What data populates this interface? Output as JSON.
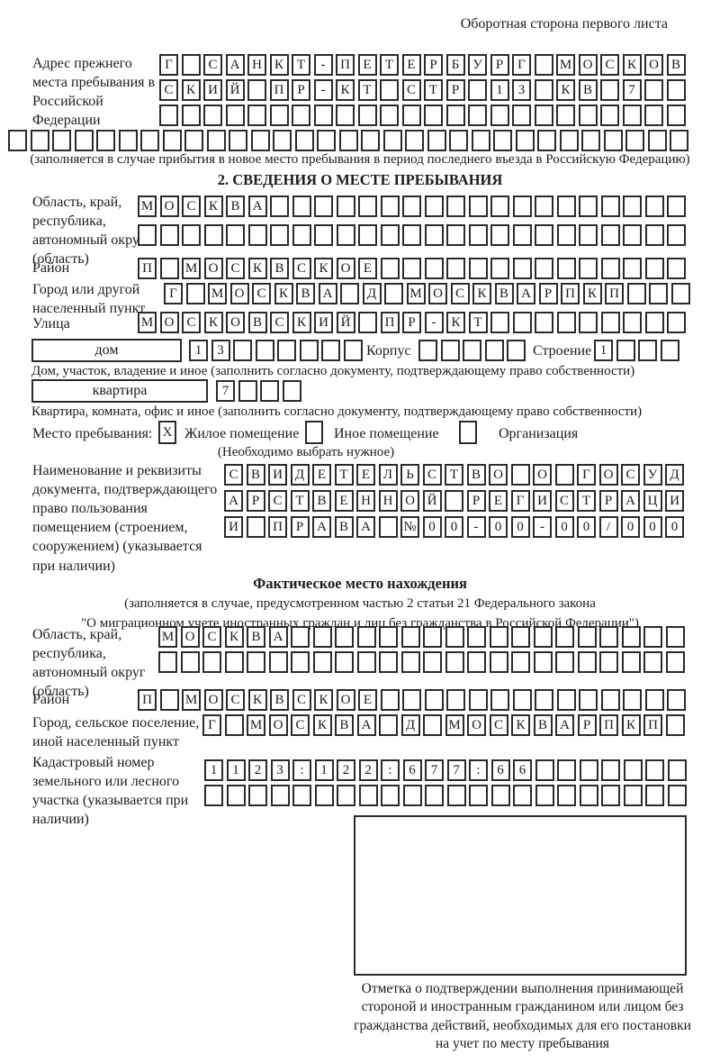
{
  "colors": {
    "ink": "#1c1c1c",
    "box_border": "#2b2b2b"
  },
  "page": {
    "header_note": "Оборотная сторона первого листа"
  },
  "prev_address": {
    "label": "Адрес прежнего места пребывания в Российской Федерации",
    "rows": [
      {
        "text": "Г САНКТ-ПЕТЕРБУРГ МОСКОВ",
        "cells": 24
      },
      {
        "text": "СКИЙ ПР-КТ СТР 13 КВ 7",
        "cells": 24
      },
      {
        "text": "",
        "cells": 24
      },
      {
        "text": "",
        "cells": 31
      }
    ],
    "note": "(заполняется в случае прибытия в новое место пребывания в период последнего въезда в Российскую Федерацию)"
  },
  "section2": {
    "title": "2. СВЕДЕНИЯ О МЕСТЕ ПРЕБЫВАНИЯ",
    "region": {
      "label": "Область, край, республика, автономный округ (область)",
      "rows": [
        {
          "text": "МОСКВА",
          "cells": 25
        },
        {
          "text": "",
          "cells": 25
        }
      ]
    },
    "district": {
      "label": "Район",
      "row": {
        "text": "П МОСКВСКОЕ",
        "cells": 25
      }
    },
    "city": {
      "label": "Город или другой населенный пункт",
      "row": {
        "text": "Г МОСКВА Д МОСКВАРПКП",
        "cells": 24
      }
    },
    "street": {
      "label": "Улица",
      "row": {
        "text": "МОСКОВСКИЙ ПР-КТ",
        "cells": 25
      }
    },
    "house": {
      "box_label": "дом",
      "number": {
        "text": "13",
        "cells": 8
      },
      "korpus_label": "Корпус",
      "korpus": {
        "text": "",
        "cells": 5
      },
      "stroenie_label": "Строение",
      "stroenie": {
        "text": "1",
        "cells": 4
      }
    },
    "house_note": "Дом, участок, владение и иное (заполнить согласно документу, подтверждающему право собственности)",
    "apartment": {
      "box_label": "квартира",
      "row": {
        "text": "7",
        "cells": 4
      }
    },
    "apartment_note": "Квартира, комната, офис и иное (заполнить согласно документу, подтверждающему право собственности)",
    "stay_type": {
      "label": "Место пребывания:",
      "options": [
        {
          "label": "Жилое помещение",
          "checked": "X"
        },
        {
          "label": "Иное помещение",
          "checked": ""
        },
        {
          "label": "Организация",
          "checked": ""
        }
      ],
      "note": "(Необходимо выбрать нужное)"
    },
    "document": {
      "label": "Наименование и реквизиты документа, подтверждающего право пользования помещением (строением, сооружением) (указывается при наличии)",
      "rows": [
        {
          "text": "СВИДЕТЕЛЬСТВО О ГОСУД",
          "cells": 21
        },
        {
          "text": "АРСТВЕННОЙ РЕГИСТРАЦИ",
          "cells": 21
        },
        {
          "text": "И ПРАВА №00-00-00/000",
          "cells": 21
        }
      ]
    }
  },
  "actual_location": {
    "title": "Фактическое место нахождения",
    "note1": "(заполняется в случае, предусмотренном частью 2 статьи 21 Федерального закона",
    "note2": "\"О миграционном учете иностранных граждан и лиц без гражданства в Российской Федерации\")",
    "region": {
      "label": "Область, край, республика, автономный округ (область)",
      "rows": [
        {
          "text": "МОСКВА",
          "cells": 24
        },
        {
          "text": "",
          "cells": 24
        }
      ]
    },
    "district": {
      "label": "Район",
      "row": {
        "text": "П МОСКВСКОЕ",
        "cells": 25
      }
    },
    "city": {
      "label": "Город, сельское поселение, иной населенный пункт",
      "row": {
        "text": "Г МОСКВА Д МОСКВАРПКП",
        "cells": 22
      }
    },
    "cadastral": {
      "label": "Кадастровый номер земельного или лесного участка (указывается при наличии)",
      "rows": [
        {
          "text": "1123:122:677:66",
          "cells": 22
        },
        {
          "text": "",
          "cells": 22
        }
      ]
    },
    "stamp_note": "Отметка о подтверждении выполнения принимающей стороной и иностранным гражданином или лицом без гражданства действий, необходимых для его постановки на учет по месту пребывания"
  }
}
